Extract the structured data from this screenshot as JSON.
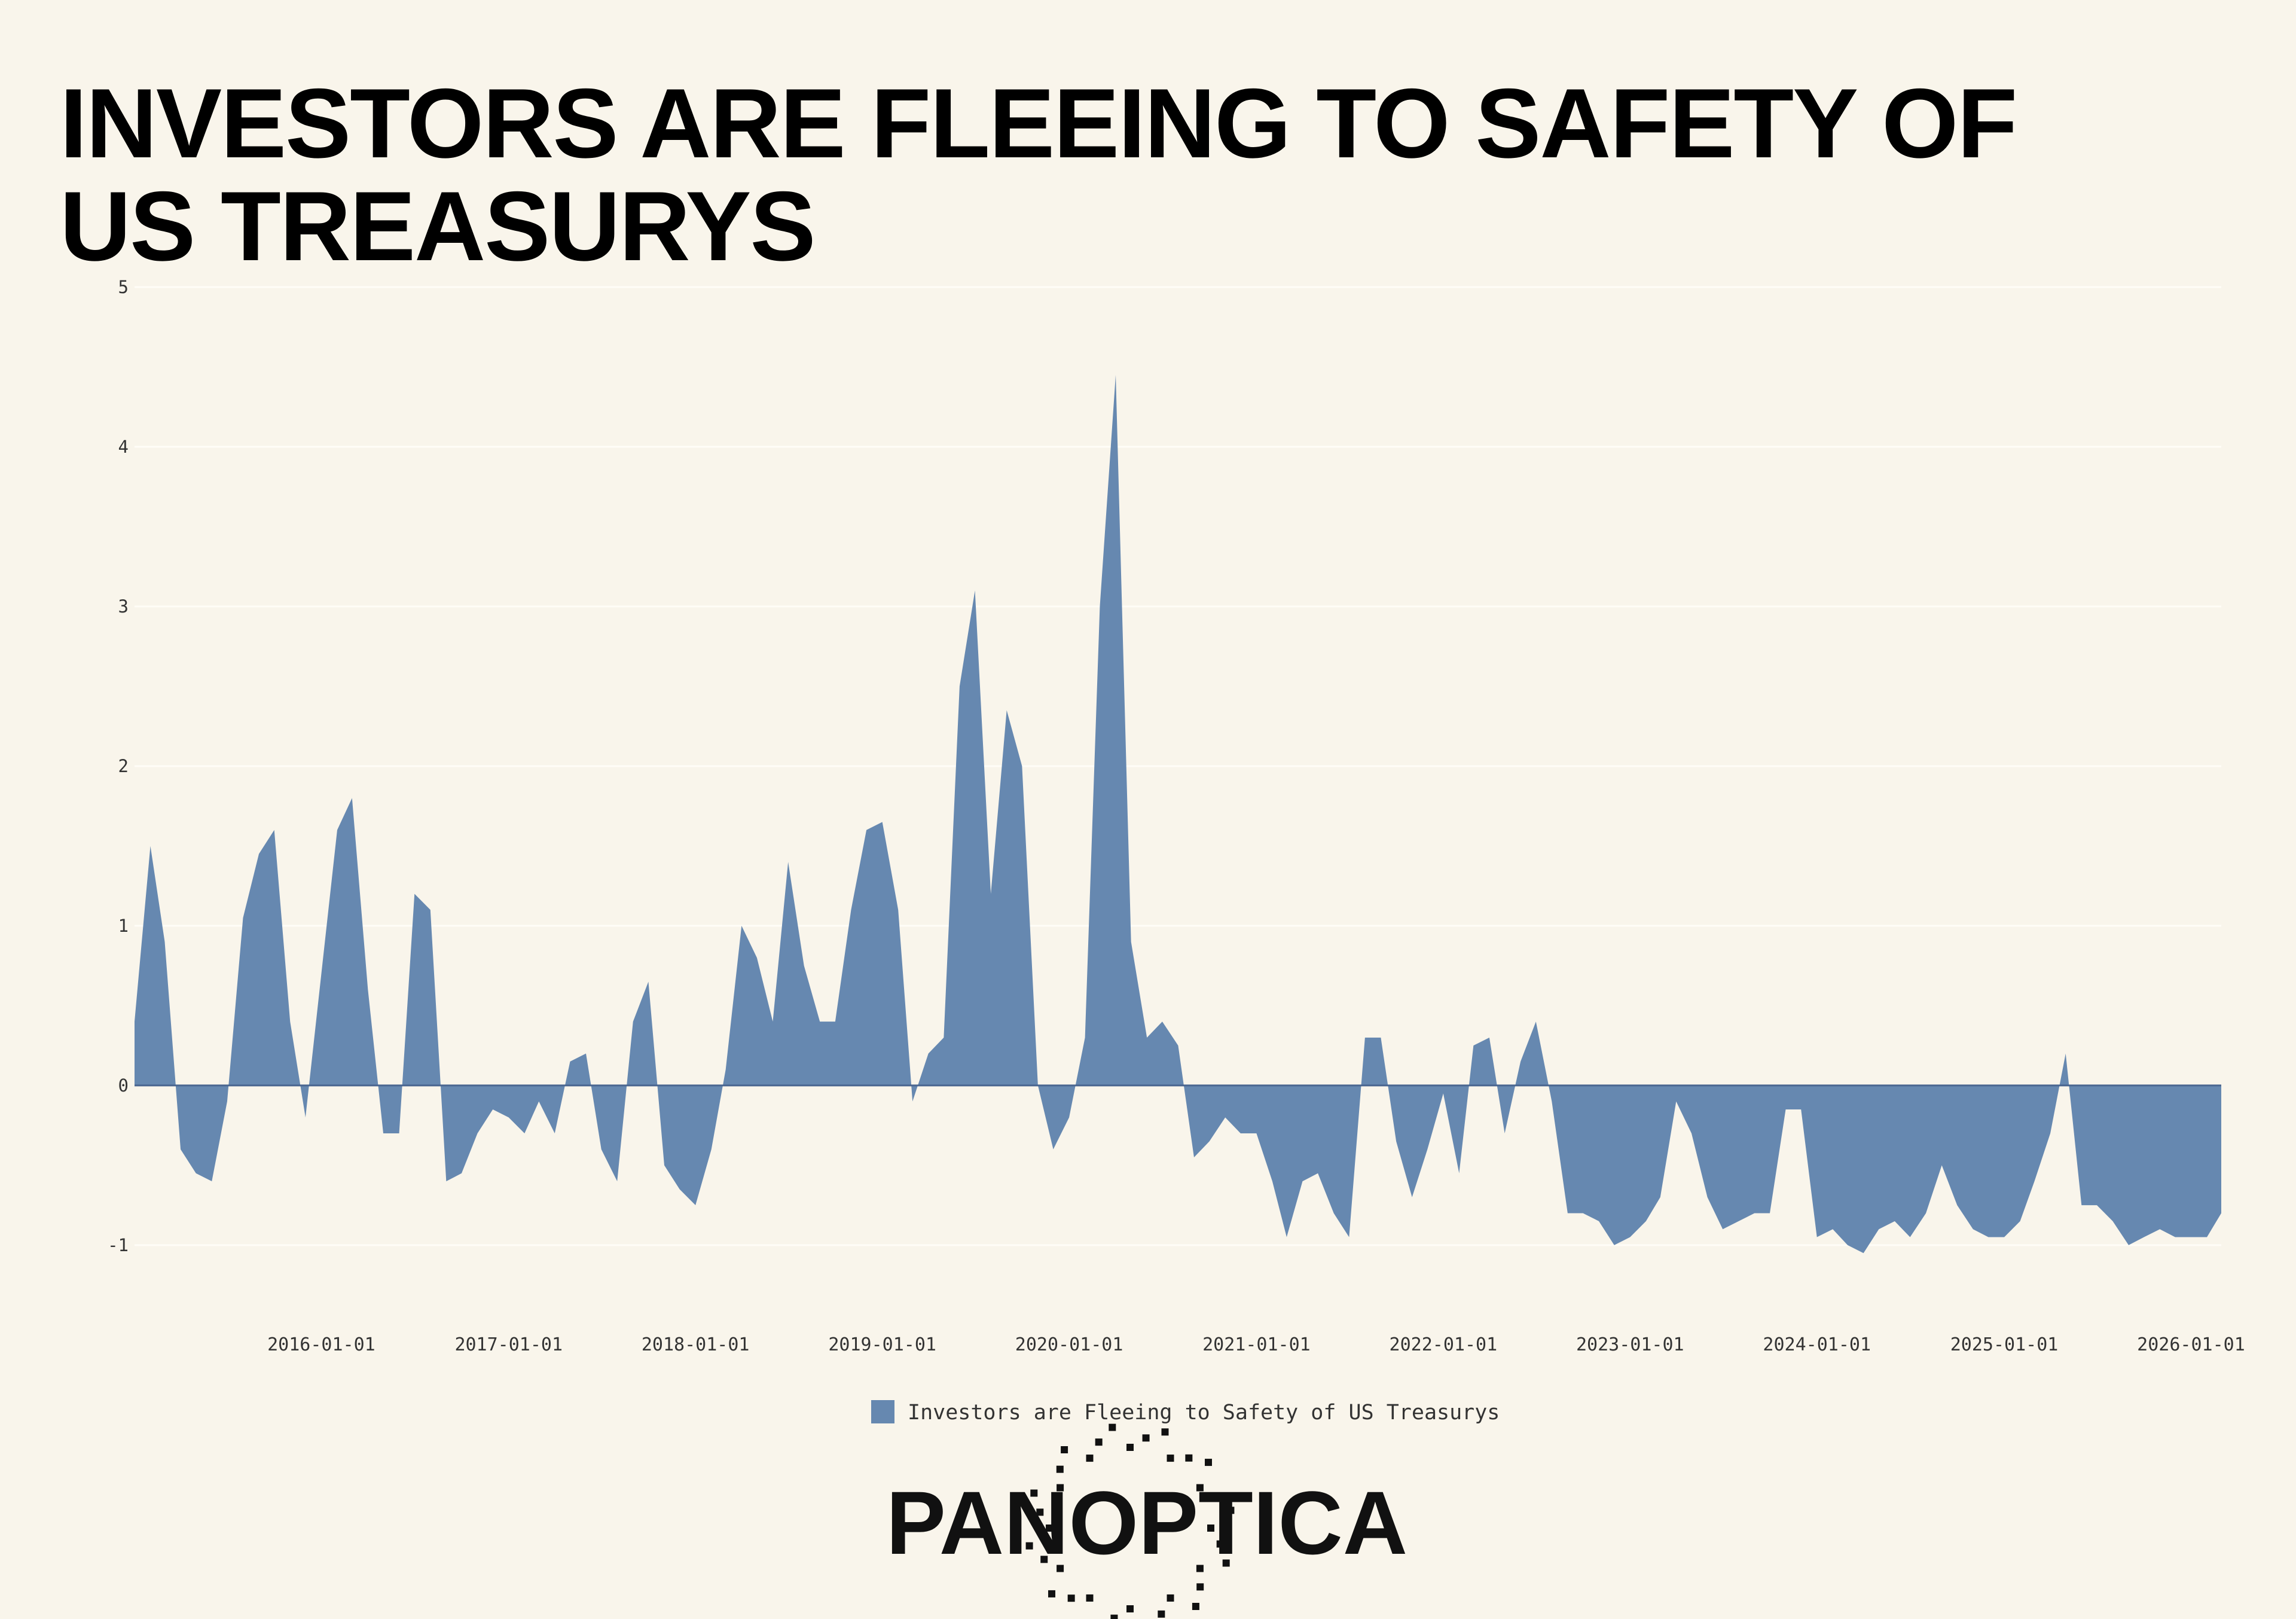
{
  "chart_data": {
    "type": "area",
    "title": "INVESTORS ARE FLEEING TO SAFETY OF US TREASURYS",
    "logo": "PANOPTICA",
    "x": [
      "2015-01-01",
      "2015-02-01",
      "2015-03-01",
      "2015-04-01",
      "2015-05-01",
      "2015-06-01",
      "2015-07-01",
      "2015-08-01",
      "2015-09-01",
      "2015-10-01",
      "2015-11-01",
      "2015-12-01",
      "2016-01-01",
      "2016-02-01",
      "2016-03-01",
      "2016-04-01",
      "2016-05-01",
      "2016-06-01",
      "2016-07-01",
      "2016-08-01",
      "2016-09-01",
      "2016-10-01",
      "2016-11-01",
      "2016-12-01",
      "2017-01-01",
      "2017-02-01",
      "2017-03-01",
      "2017-04-01",
      "2017-05-01",
      "2017-06-01",
      "2017-07-01",
      "2017-08-01",
      "2017-09-01",
      "2017-10-01",
      "2017-11-01",
      "2017-12-01",
      "2018-01-01",
      "2018-02-01",
      "2018-03-01",
      "2018-04-01",
      "2018-05-01",
      "2018-06-01",
      "2018-07-01",
      "2018-08-01",
      "2018-09-01",
      "2018-10-01",
      "2018-11-01",
      "2018-12-01",
      "2019-01-01",
      "2019-02-01",
      "2019-03-01",
      "2019-04-01",
      "2019-05-01",
      "2019-06-01",
      "2019-07-01",
      "2019-08-01",
      "2019-09-01",
      "2019-10-01",
      "2019-11-01",
      "2019-12-01",
      "2020-01-01",
      "2020-02-01",
      "2020-03-01",
      "2020-04-01",
      "2020-05-01",
      "2020-06-01",
      "2020-07-01",
      "2020-08-01",
      "2020-09-01",
      "2020-10-01",
      "2020-11-01",
      "2020-12-01",
      "2021-01-01",
      "2021-02-01",
      "2021-03-01",
      "2021-04-01",
      "2021-05-01",
      "2021-06-01",
      "2021-07-01",
      "2021-08-01",
      "2021-09-01",
      "2021-10-01",
      "2021-11-01",
      "2021-12-01",
      "2022-01-01",
      "2022-02-01",
      "2022-03-01",
      "2022-04-01",
      "2022-05-01",
      "2022-06-01",
      "2022-07-01",
      "2022-08-01",
      "2022-09-01",
      "2022-10-01",
      "2022-11-01",
      "2022-12-01",
      "2023-01-01",
      "2023-02-01",
      "2023-03-01",
      "2023-04-01",
      "2023-05-01",
      "2023-06-01",
      "2023-07-01",
      "2023-08-01",
      "2023-09-01",
      "2023-10-01",
      "2023-11-01",
      "2023-12-01",
      "2024-01-01",
      "2024-02-01",
      "2024-03-01",
      "2024-04-01",
      "2024-05-01",
      "2024-06-01",
      "2024-07-01",
      "2024-08-01",
      "2024-09-01",
      "2024-10-01",
      "2024-11-01",
      "2024-12-01",
      "2025-01-01",
      "2025-02-01",
      "2025-03-01",
      "2025-04-01",
      "2025-05-01",
      "2025-06-01",
      "2025-07-01",
      "2025-08-01",
      "2025-09-01",
      "2025-10-01",
      "2025-11-01",
      "2025-12-01",
      "2026-01-01",
      "2026-02-01",
      "2026-03-01"
    ],
    "series": [
      {
        "name": "Investors are Fleeing to Safety of US Treasurys",
        "color": "#6688b0",
        "values": [
          0.4,
          1.5,
          0.9,
          -0.4,
          -0.55,
          -0.6,
          -0.1,
          1.05,
          1.45,
          1.6,
          0.4,
          -0.2,
          0.7,
          1.6,
          1.8,
          0.6,
          -0.3,
          -0.3,
          1.2,
          1.1,
          -0.6,
          -0.55,
          -0.3,
          -0.15,
          -0.2,
          -0.3,
          -0.1,
          -0.3,
          0.15,
          0.2,
          -0.4,
          -0.6,
          0.4,
          0.65,
          -0.5,
          -0.65,
          -0.75,
          -0.4,
          0.1,
          1.0,
          0.8,
          0.4,
          1.4,
          0.75,
          0.4,
          0.4,
          1.1,
          1.6,
          1.65,
          1.1,
          -0.1,
          0.2,
          0.3,
          2.5,
          3.1,
          1.2,
          2.35,
          2.0,
          0.0,
          -0.4,
          -0.2,
          0.3,
          3.0,
          4.45,
          0.9,
          0.3,
          0.4,
          0.25,
          -0.45,
          -0.35,
          -0.2,
          -0.3,
          -0.3,
          -0.6,
          -0.95,
          -0.6,
          -0.55,
          -0.8,
          -0.95,
          0.3,
          0.3,
          -0.35,
          -0.7,
          -0.4,
          -0.05,
          -0.55,
          0.25,
          0.3,
          -0.3,
          0.15,
          0.4,
          -0.1,
          -0.8,
          -0.8,
          -0.85,
          -1.0,
          -0.95,
          -0.85,
          -0.7,
          -0.1,
          -0.3,
          -0.7,
          -0.9,
          -0.85,
          -0.8,
          -0.8,
          -0.15,
          -0.15,
          -0.95,
          -0.9,
          -1.0,
          -1.05,
          -0.9,
          -0.85,
          -0.95,
          -0.8,
          -0.5,
          -0.75,
          -0.9,
          -0.95,
          -0.95,
          -0.85,
          -0.6,
          -0.3,
          0.2,
          -0.75,
          -0.75,
          -0.85,
          -1.0,
          -0.95,
          -0.9,
          -0.95,
          -0.95,
          -0.95,
          -0.8
        ]
      }
    ],
    "xlim": [
      "2015-01-01",
      "2026-03-01"
    ],
    "xticks": [
      "2016-01-01",
      "2017-01-01",
      "2018-01-01",
      "2019-01-01",
      "2020-01-01",
      "2021-01-01",
      "2022-01-01",
      "2023-01-01",
      "2024-01-01",
      "2025-01-01",
      "2026-01-01"
    ],
    "ylim": [
      -1.3,
      5
    ],
    "yticks": [
      -1,
      0,
      1,
      2,
      3,
      4,
      5
    ],
    "grid": true
  }
}
